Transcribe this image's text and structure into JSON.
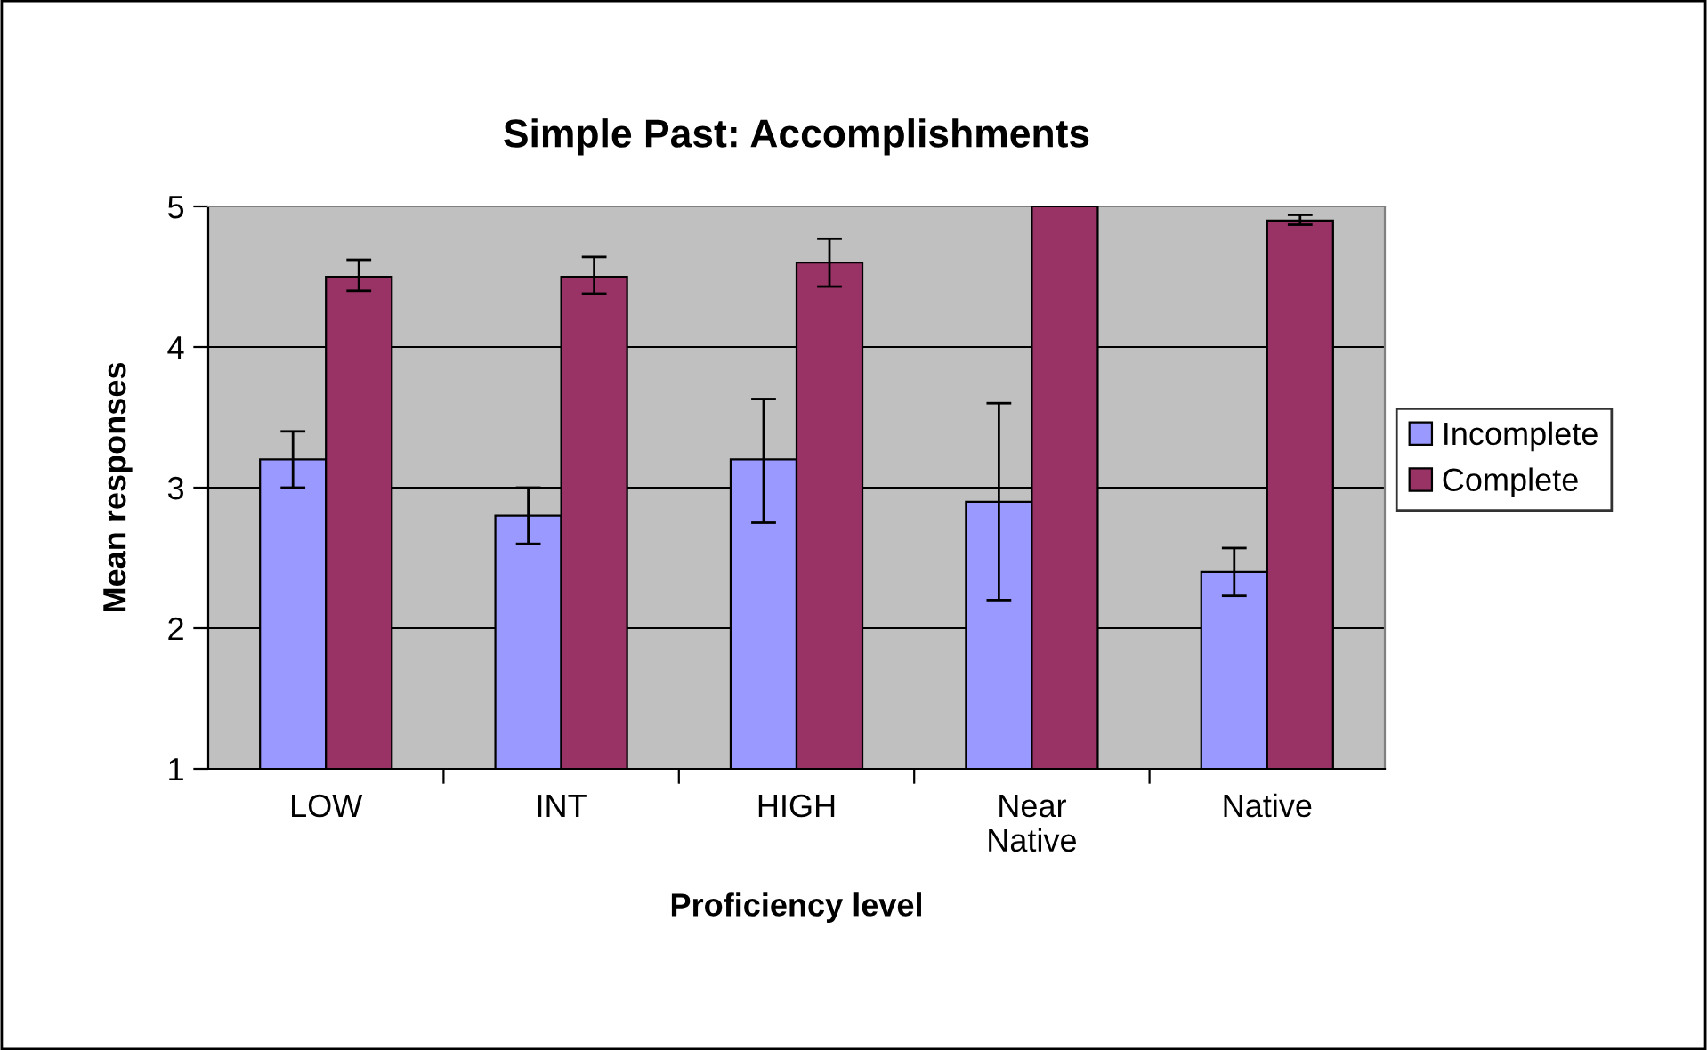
{
  "chart_data": {
    "type": "bar",
    "title": "Simple Past: Accomplishments",
    "xlabel": "Proficiency level",
    "ylabel": "Mean responses",
    "categories": [
      "LOW",
      "INT",
      "HIGH",
      "Near\nNative",
      "Native"
    ],
    "series": [
      {
        "name": "Incomplete",
        "color": "#9999ff",
        "values": [
          3.2,
          2.8,
          3.2,
          2.9,
          2.4
        ],
        "errors": [
          [
            3.0,
            3.4
          ],
          [
            2.6,
            3.0
          ],
          [
            2.75,
            3.63
          ],
          [
            2.2,
            3.6
          ],
          [
            2.23,
            2.57
          ]
        ]
      },
      {
        "name": "Complete",
        "color": "#993366",
        "values": [
          4.5,
          4.5,
          4.6,
          5.0,
          4.9
        ],
        "errors": [
          [
            4.4,
            4.62
          ],
          [
            4.38,
            4.64
          ],
          [
            4.43,
            4.77
          ],
          null,
          [
            4.87,
            4.94
          ]
        ]
      }
    ],
    "ylim": [
      1,
      5
    ],
    "yticks": [
      1,
      2,
      3,
      4,
      5
    ],
    "grid": "y",
    "legend": "right"
  }
}
